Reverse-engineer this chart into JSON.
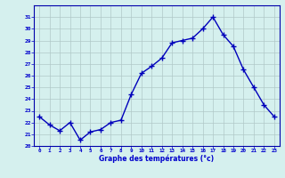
{
  "hours": [
    0,
    1,
    2,
    3,
    4,
    5,
    6,
    7,
    8,
    9,
    10,
    11,
    12,
    13,
    14,
    15,
    16,
    17,
    18,
    19,
    20,
    21,
    22,
    23
  ],
  "temperatures": [
    22.5,
    21.8,
    21.3,
    22.0,
    20.5,
    21.2,
    21.4,
    22.0,
    22.2,
    24.4,
    26.2,
    26.8,
    27.5,
    28.8,
    29.0,
    29.2,
    30.0,
    31.0,
    29.5,
    28.5,
    26.5,
    25.0,
    23.5,
    22.5
  ],
  "xlabel": "Graphe des températures (°c)",
  "ylim": [
    20,
    32
  ],
  "xlim": [
    -0.5,
    23.5
  ],
  "yticks": [
    20,
    21,
    22,
    23,
    24,
    25,
    26,
    27,
    28,
    29,
    30,
    31
  ],
  "xticks": [
    0,
    1,
    2,
    3,
    4,
    5,
    6,
    7,
    8,
    9,
    10,
    11,
    12,
    13,
    14,
    15,
    16,
    17,
    18,
    19,
    20,
    21,
    22,
    23
  ],
  "line_color": "#0000bb",
  "marker_color": "#0000bb",
  "bg_color": "#d5f0ee",
  "grid_color": "#b0c8c8",
  "axis_color": "#0000aa",
  "tick_label_color": "#0000cc",
  "xlabel_color": "#0000cc",
  "marker": "+",
  "markersize": 4,
  "linewidth": 1.0
}
